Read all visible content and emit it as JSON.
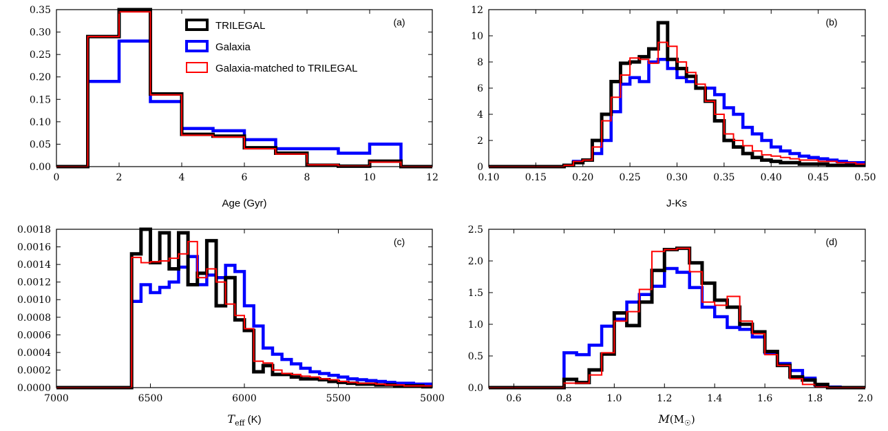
{
  "figure": {
    "legend": {
      "entries": [
        {
          "label": "TRILEGAL",
          "color": "#000000"
        },
        {
          "label": "Galaxia",
          "color": "#0000ff"
        },
        {
          "label": "Galaxia-matched to TRILEGAL",
          "color": "#ff0000"
        }
      ],
      "location": "top-right of panel (a)"
    }
  },
  "chart_data": [
    {
      "panel": "(a)",
      "type": "histogram",
      "xlabel": "Age (Gyr)",
      "ylabel": "",
      "xlim": [
        0,
        12
      ],
      "ylim": [
        0,
        0.35
      ],
      "xticks": [
        "0",
        "2",
        "4",
        "6",
        "8",
        "10",
        "12"
      ],
      "yticks": [
        "0.00",
        "0.05",
        "0.10",
        "0.15",
        "0.20",
        "0.25",
        "0.30",
        "0.35"
      ],
      "edges": [
        0,
        1,
        2,
        3,
        4,
        5,
        6,
        7,
        8,
        9,
        10,
        11,
        12
      ],
      "series": [
        {
          "name": "Galaxia",
          "color": "#0000ff",
          "values": [
            0,
            0.19,
            0.28,
            0.145,
            0.085,
            0.08,
            0.06,
            0.04,
            0.04,
            0.03,
            0.05,
            0
          ]
        },
        {
          "name": "TRILEGAL",
          "color": "#000000",
          "values": [
            0,
            0.29,
            0.35,
            0.162,
            0.072,
            0.068,
            0.042,
            0.03,
            0.003,
            0.001,
            0.012,
            0
          ]
        },
        {
          "name": "Galaxia-matched to TRILEGAL",
          "color": "#ff0000",
          "values": [
            0,
            0.29,
            0.345,
            0.16,
            0.07,
            0.066,
            0.04,
            0.028,
            0.004,
            0.001,
            0.01,
            0
          ]
        }
      ]
    },
    {
      "panel": "(b)",
      "type": "histogram",
      "xlabel": "J-Ks",
      "ylabel": "",
      "xlim": [
        0.1,
        0.5
      ],
      "ylim": [
        0,
        12
      ],
      "xticks": [
        "0.10",
        "0.15",
        "0.20",
        "0.25",
        "0.30",
        "0.35",
        "0.40",
        "0.45",
        "0.50"
      ],
      "yticks": [
        "0",
        "2",
        "4",
        "6",
        "8",
        "10",
        "12"
      ],
      "edges": [
        0.1,
        0.18,
        0.19,
        0.2,
        0.21,
        0.22,
        0.23,
        0.24,
        0.25,
        0.26,
        0.27,
        0.28,
        0.29,
        0.3,
        0.31,
        0.32,
        0.33,
        0.34,
        0.35,
        0.36,
        0.37,
        0.38,
        0.39,
        0.4,
        0.41,
        0.42,
        0.43,
        0.44,
        0.45,
        0.46,
        0.47,
        0.48,
        0.49,
        0.5
      ],
      "series": [
        {
          "name": "Galaxia",
          "color": "#0000ff",
          "values": [
            0,
            0.1,
            0.4,
            0.5,
            1.0,
            2.0,
            4.2,
            6.3,
            6.8,
            6.5,
            8.0,
            8.2,
            7.5,
            6.8,
            6.5,
            6.0,
            6.0,
            5.5,
            4.5,
            4.0,
            3.0,
            2.5,
            2.0,
            1.5,
            1.2,
            1.0,
            0.8,
            0.7,
            0.6,
            0.5,
            0.4,
            0.3,
            0.3
          ]
        },
        {
          "name": "TRILEGAL",
          "color": "#000000",
          "values": [
            0,
            0.1,
            0.3,
            0.5,
            2.0,
            4.0,
            6.5,
            7.9,
            8.0,
            8.4,
            9.0,
            11.0,
            8.2,
            7.5,
            6.9,
            6.0,
            5.0,
            3.5,
            2.0,
            1.5,
            1.0,
            0.7,
            0.5,
            0.4,
            0.3,
            0.3,
            0.2,
            0.2,
            0.2,
            0.1,
            0.1,
            0.1,
            0.1
          ]
        },
        {
          "name": "Galaxia-matched to TRILEGAL",
          "color": "#ff0000",
          "values": [
            0,
            0.1,
            0.4,
            0.5,
            1.5,
            3.5,
            5.3,
            7.0,
            8.3,
            8.2,
            7.9,
            9.5,
            9.2,
            8.0,
            7.2,
            6.3,
            5.0,
            4.0,
            2.5,
            2.0,
            1.6,
            1.2,
            0.9,
            0.8,
            0.7,
            0.6,
            0.5,
            0.5,
            0.4,
            0.4,
            0.3,
            0.3,
            0.2
          ]
        }
      ]
    },
    {
      "panel": "(c)",
      "type": "histogram",
      "xlabel": "T_eff (K)",
      "ylabel": "",
      "xlim": [
        7000,
        5000
      ],
      "x_reversed": true,
      "ylim": [
        0,
        0.0018
      ],
      "xticks": [
        "7000",
        "6500",
        "6000",
        "5500",
        "5000"
      ],
      "yticks": [
        "0.0000",
        "0.0002",
        "0.0004",
        "0.0006",
        "0.0008",
        "0.0010",
        "0.0012",
        "0.0014",
        "0.0016",
        "0.0018"
      ],
      "edges": [
        7000,
        6600,
        6550,
        6500,
        6450,
        6400,
        6350,
        6300,
        6250,
        6200,
        6150,
        6100,
        6050,
        6000,
        5950,
        5900,
        5850,
        5800,
        5750,
        5700,
        5650,
        5600,
        5550,
        5500,
        5450,
        5400,
        5350,
        5300,
        5250,
        5200,
        5150,
        5100,
        5050,
        5000
      ],
      "series": [
        {
          "name": "Galaxia",
          "color": "#0000ff",
          "values": [
            0,
            0.00098,
            0.00117,
            0.00108,
            0.00114,
            0.0012,
            0.00137,
            0.00149,
            0.00117,
            0.00128,
            0.00125,
            0.00139,
            0.00132,
            0.00093,
            0.0007,
            0.00045,
            0.00038,
            0.00032,
            0.00027,
            0.00022,
            0.00018,
            0.00016,
            0.00014,
            0.00012,
            0.0001,
            9e-05,
            8e-05,
            7e-05,
            6e-05,
            5e-05,
            5e-05,
            4e-05,
            4e-05
          ]
        },
        {
          "name": "TRILEGAL",
          "color": "#000000",
          "values": [
            0,
            0.00152,
            0.0018,
            0.00142,
            0.00176,
            0.00135,
            0.00176,
            0.00117,
            0.0013,
            0.00167,
            0.00093,
            0.00125,
            0.00077,
            0.00065,
            0.00018,
            0.00025,
            0.00015,
            0.00015,
            0.00012,
            0.0001,
            0.0001,
            9e-05,
            7e-05,
            6e-05,
            5e-05,
            4e-05,
            4e-05,
            3e-05,
            3e-05,
            2e-05,
            2e-05,
            2e-05,
            1e-05
          ]
        },
        {
          "name": "Galaxia-matched to TRILEGAL",
          "color": "#ff0000",
          "values": [
            0,
            0.00148,
            0.00142,
            0.00143,
            0.00144,
            0.00147,
            0.00152,
            0.00166,
            0.00125,
            0.00135,
            0.0012,
            0.00095,
            0.00082,
            0.00067,
            0.0003,
            0.00028,
            0.0002,
            0.00016,
            0.00015,
            0.00013,
            0.00012,
            0.0001,
            9e-05,
            7e-05,
            6e-05,
            5e-05,
            5e-05,
            4e-05,
            3e-05,
            3e-05,
            2e-05,
            2e-05,
            2e-05
          ]
        }
      ]
    },
    {
      "panel": "(d)",
      "type": "histogram",
      "xlabel": "M(M_sun)",
      "ylabel": "",
      "xlim": [
        0.5,
        2.0
      ],
      "ylim": [
        0,
        2.5
      ],
      "xticks": [
        "0.6",
        "0.8",
        "1.0",
        "1.2",
        "1.4",
        "1.6",
        "1.8",
        "2.0"
      ],
      "yticks": [
        "0.0",
        "0.5",
        "1.0",
        "1.5",
        "2.0",
        "2.5"
      ],
      "edges": [
        0.5,
        0.8,
        0.85,
        0.9,
        0.95,
        1.0,
        1.05,
        1.1,
        1.15,
        1.2,
        1.25,
        1.3,
        1.35,
        1.4,
        1.45,
        1.5,
        1.55,
        1.6,
        1.65,
        1.7,
        1.75,
        1.8,
        1.85,
        1.9,
        1.95,
        2.0
      ],
      "series": [
        {
          "name": "Galaxia",
          "color": "#0000ff",
          "values": [
            0,
            0.55,
            0.52,
            0.67,
            0.97,
            1.08,
            1.35,
            1.47,
            1.6,
            1.88,
            1.82,
            1.58,
            1.27,
            1.12,
            0.95,
            0.92,
            0.8,
            0.55,
            0.38,
            0.27,
            0.15,
            0.04,
            0.01,
            0,
            0
          ]
        },
        {
          "name": "TRILEGAL",
          "color": "#000000",
          "values": [
            0,
            0.13,
            0.08,
            0.28,
            0.53,
            1.18,
            0.98,
            1.35,
            1.85,
            2.18,
            2.2,
            1.97,
            1.65,
            1.38,
            1.27,
            1.0,
            0.88,
            0.57,
            0.35,
            0.17,
            0.12,
            0.05,
            0,
            0,
            0
          ]
        },
        {
          "name": "Galaxia-matched to TRILEGAL",
          "color": "#ff0000",
          "values": [
            0,
            0.07,
            0.07,
            0.2,
            0.55,
            1.05,
            1.2,
            1.55,
            2.15,
            2.18,
            2.2,
            1.83,
            1.35,
            1.3,
            1.44,
            1.05,
            0.85,
            0.52,
            0.35,
            0.14,
            0.05,
            0.01,
            0,
            0,
            0
          ]
        }
      ]
    }
  ]
}
